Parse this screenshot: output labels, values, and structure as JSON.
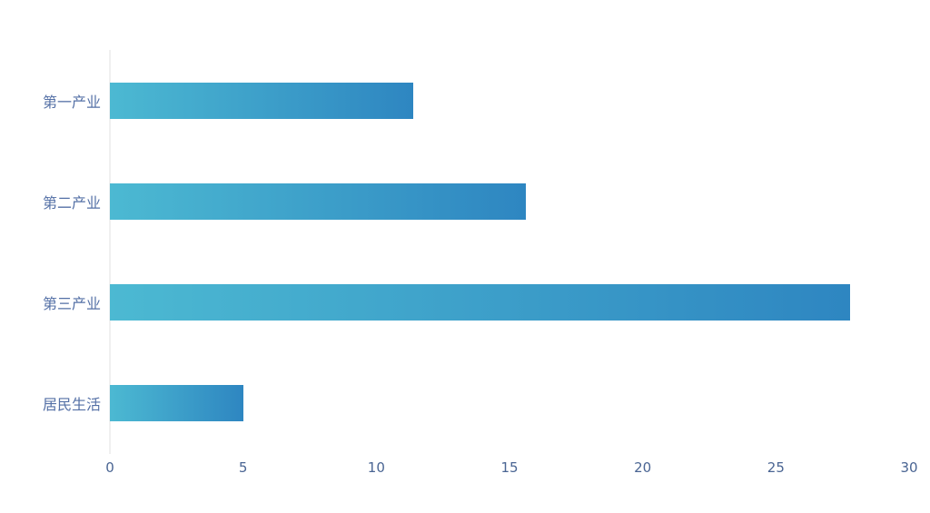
{
  "chart_data": {
    "type": "bar",
    "orientation": "horizontal",
    "title": "",
    "xlabel": "",
    "ylabel": "",
    "categories": [
      "第一产业",
      "第二产业",
      "第三产业",
      "居民生活"
    ],
    "values": [
      11.4,
      15.6,
      27.8,
      5.0
    ],
    "x_ticks": [
      0,
      5,
      10,
      15,
      20,
      25,
      30
    ],
    "xlim": [
      0,
      30
    ],
    "grid": false,
    "legend": false,
    "bar_gradient_start": "#4cb9d2",
    "bar_gradient_end": "#2e86c1",
    "axis_line_color": "#f0f0f0",
    "category_label_color": "#5470a6",
    "tick_label_color": "#4a6593",
    "background_color": "#ffffff"
  }
}
